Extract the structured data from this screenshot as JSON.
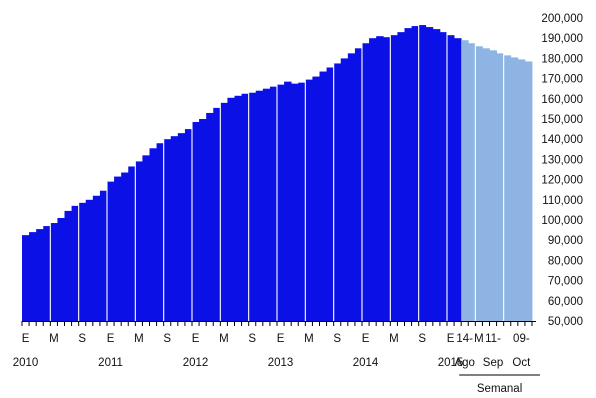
{
  "chart_data": {
    "type": "bar",
    "title": "",
    "xlabel": "",
    "ylabel": "",
    "ylim": [
      50000,
      200000
    ],
    "y_ticks": [
      50000,
      60000,
      70000,
      80000,
      90000,
      100000,
      110000,
      120000,
      130000,
      140000,
      150000,
      160000,
      170000,
      180000,
      190000,
      200000
    ],
    "y_tick_labels": [
      "50,000",
      "60,000",
      "70,000",
      "80,000",
      "90,000",
      "100,000",
      "110,000",
      "120,000",
      "130,000",
      "140,000",
      "150,000",
      "160,000",
      "170,000",
      "180,000",
      "190,000",
      "200,000"
    ],
    "y_axis_position": "right",
    "grid": false,
    "legend": "none",
    "colors": {
      "monthly": "#0a10e6",
      "weekly": "#8db4e2",
      "separator": "#ffffff"
    },
    "series": [
      {
        "values": [
          92500,
          94000,
          95500,
          97000,
          98500,
          101000,
          104500,
          107000,
          108500,
          110000,
          112000,
          114500,
          119000,
          121500,
          123500,
          126500,
          129000,
          132000,
          135500,
          138000,
          140000,
          141500,
          143000,
          145000,
          148500,
          150000,
          153000,
          155500,
          158000,
          160500,
          161500,
          162500,
          163000,
          164000,
          165000,
          166000,
          167000,
          168500,
          167500,
          168000,
          169500,
          171000,
          173500,
          175500,
          177500,
          180000,
          182500,
          185000,
          187500,
          190000,
          191000,
          190500,
          191500,
          193000,
          195000,
          196000,
          196500,
          195500,
          194500,
          193000,
          191500,
          190000
        ]
      },
      {
        "values": [
          189000,
          187500,
          186000,
          185000,
          184000,
          182500,
          181500,
          180500,
          179500,
          178500
        ]
      }
    ],
    "x_tick_labels": {
      "monthly": [
        {
          "label": "E",
          "index": 0
        },
        {
          "label": "M",
          "index": 4
        },
        {
          "label": "S",
          "index": 8
        },
        {
          "label": "E",
          "index": 12
        },
        {
          "label": "M",
          "index": 16
        },
        {
          "label": "S",
          "index": 20
        },
        {
          "label": "E",
          "index": 24
        },
        {
          "label": "M",
          "index": 28
        },
        {
          "label": "S",
          "index": 32
        },
        {
          "label": "E",
          "index": 36
        },
        {
          "label": "M",
          "index": 40
        },
        {
          "label": "S",
          "index": 44
        },
        {
          "label": "E",
          "index": 48
        },
        {
          "label": "M",
          "index": 52
        },
        {
          "label": "S",
          "index": 56
        },
        {
          "label": "E",
          "index": 60
        },
        {
          "label": "M",
          "index": 64
        }
      ],
      "weekly": [
        {
          "label": "14-",
          "sublabel": "Ago",
          "index": 0
        },
        {
          "label": "11-",
          "sublabel": "Sep",
          "index": 4
        },
        {
          "label": "09-",
          "sublabel": "Oct",
          "index": 8
        }
      ]
    },
    "year_labels": [
      {
        "label": "2010",
        "index": 0
      },
      {
        "label": "2011",
        "index": 12
      },
      {
        "label": "2012",
        "index": 24
      },
      {
        "label": "2013",
        "index": 36
      },
      {
        "label": "2014",
        "index": 48
      },
      {
        "label": "2015",
        "index": 60
      }
    ],
    "section_labels": {
      "weekly": "Semanal"
    }
  }
}
